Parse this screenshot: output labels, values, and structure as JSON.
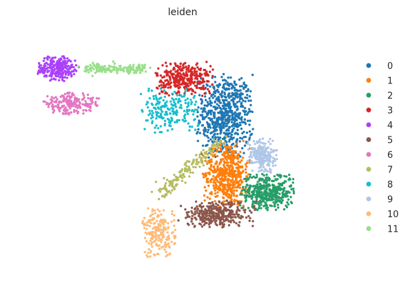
{
  "chart_data": {
    "type": "scatter",
    "title": "leiden",
    "xlabel": "",
    "ylabel": "",
    "grid": false,
    "legend_placement": "right",
    "legend_title": "",
    "xlim": [
      0,
      10
    ],
    "ylim": [
      0,
      10
    ],
    "series": [
      {
        "name": "0",
        "color": "#1f77b4",
        "n": 650,
        "region": {
          "type": "box",
          "x": [
            5.4,
            7.1
          ],
          "y": [
            4.6,
            8.0
          ]
        }
      },
      {
        "name": "1",
        "color": "#ff7f0e",
        "n": 520,
        "region": {
          "type": "box",
          "x": [
            5.6,
            7.0
          ],
          "y": [
            2.6,
            5.3
          ]
        }
      },
      {
        "name": "2",
        "color": "#279e68",
        "n": 420,
        "region": {
          "type": "box",
          "x": [
            6.7,
            8.3
          ],
          "y": [
            2.5,
            4.0
          ]
        }
      },
      {
        "name": "3",
        "color": "#d62728",
        "n": 330,
        "region": {
          "type": "box",
          "x": [
            4.2,
            5.9
          ],
          "y": [
            7.1,
            8.5
          ]
        }
      },
      {
        "name": "4",
        "color": "#aa40fc",
        "n": 240,
        "region": {
          "type": "ellipse",
          "cx": 1.3,
          "cy": 8.2,
          "rx": 0.65,
          "ry": 0.55
        }
      },
      {
        "name": "5",
        "color": "#8c564b",
        "n": 330,
        "region": {
          "type": "box",
          "x": [
            4.8,
            7.2
          ],
          "y": [
            1.8,
            2.9
          ]
        }
      },
      {
        "name": "6",
        "color": "#e377c2",
        "n": 200,
        "region": {
          "type": "ellipse",
          "cx": 1.7,
          "cy": 6.8,
          "rx": 0.95,
          "ry": 0.45
        }
      },
      {
        "name": "7",
        "color": "#b5bd61",
        "n": 160,
        "region": {
          "type": "band",
          "from": [
            4.3,
            3.1
          ],
          "to": [
            6.1,
            5.3
          ],
          "width": 0.25
        }
      },
      {
        "name": "8",
        "color": "#17becf",
        "n": 200,
        "region": {
          "type": "box",
          "x": [
            3.7,
            5.5
          ],
          "y": [
            5.6,
            7.4
          ]
        }
      },
      {
        "name": "9",
        "color": "#aec7e8",
        "n": 190,
        "region": {
          "type": "box",
          "x": [
            6.9,
            7.8
          ],
          "y": [
            4.0,
            5.4
          ]
        }
      },
      {
        "name": "10",
        "color": "#ffbb78",
        "n": 200,
        "region": {
          "type": "box",
          "x": [
            3.8,
            4.8
          ],
          "y": [
            0.6,
            2.6
          ]
        }
      },
      {
        "name": "11",
        "color": "#98df8a",
        "n": 150,
        "region": {
          "type": "band",
          "from": [
            2.1,
            8.2
          ],
          "to": [
            3.9,
            8.2
          ],
          "width": 0.2
        }
      }
    ]
  }
}
